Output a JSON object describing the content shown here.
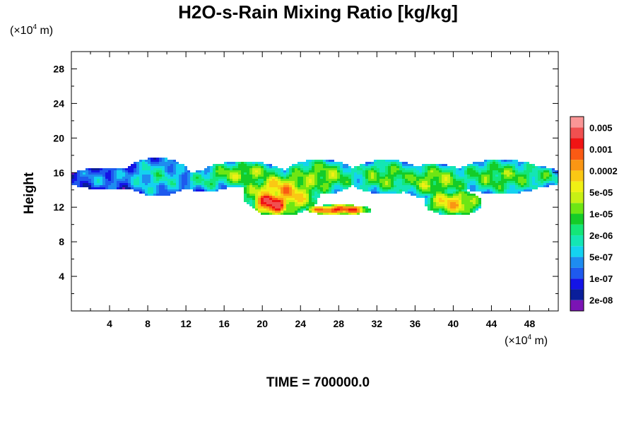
{
  "title": "H2O-s-Rain Mixing Ratio [kg/kg]",
  "y_unit": {
    "prefix": "(×10",
    "exp": "4",
    "suffix": " m)"
  },
  "x_unit": {
    "prefix": "(×10",
    "exp": "4",
    "suffix": " m)"
  },
  "ylabel": "Height",
  "footer": "TIME = 700000.0",
  "colors": {
    "levels": [
      "#7b14b4",
      "#0a1e9a",
      "#1414e6",
      "#1e5aee",
      "#1e8cf0",
      "#14d2f0",
      "#14e6b4",
      "#14e678",
      "#14cc28",
      "#6ee614",
      "#c8f014",
      "#f0f014",
      "#fac814",
      "#fa9614",
      "#fa5a14",
      "#f01414",
      "#f05050",
      "#fa9696"
    ]
  },
  "chart_data": {
    "type": "contour",
    "title": "H2O-s-Rain Mixing Ratio [kg/kg]",
    "xlabel": "",
    "ylabel": "Height",
    "x_ticks": [
      4,
      8,
      12,
      16,
      20,
      24,
      28,
      32,
      36,
      40,
      44,
      48
    ],
    "y_ticks": [
      4,
      8,
      12,
      16,
      20,
      24,
      28
    ],
    "xlim": [
      0,
      51
    ],
    "ylim": [
      0,
      30
    ],
    "colorbar_labels": [
      "0.005",
      "0.001",
      "0.0002",
      "5e-05",
      "1e-05",
      "2e-06",
      "5e-07",
      "1e-07",
      "2e-08"
    ],
    "blobs": [
      {
        "x": 4,
        "y": 15.3,
        "rx": 4.5,
        "ry": 1.3,
        "level": 0.25
      },
      {
        "x": 9,
        "y": 15.5,
        "rx": 3.5,
        "ry": 2.2,
        "level": 0.35
      },
      {
        "x": 14,
        "y": 15.0,
        "rx": 3.0,
        "ry": 1.2,
        "level": 0.38
      },
      {
        "x": 18,
        "y": 15.8,
        "rx": 4.5,
        "ry": 1.5,
        "level": 0.55
      },
      {
        "x": 22,
        "y": 13.5,
        "rx": 4.0,
        "ry": 2.5,
        "level": 0.72
      },
      {
        "x": 21,
        "y": 12.5,
        "rx": 2.0,
        "ry": 1.5,
        "level": 0.9
      },
      {
        "x": 28,
        "y": 11.7,
        "rx": 3.5,
        "ry": 0.6,
        "level": 0.85
      },
      {
        "x": 26,
        "y": 15.5,
        "rx": 4.0,
        "ry": 2.0,
        "level": 0.55
      },
      {
        "x": 33,
        "y": 15.5,
        "rx": 4.0,
        "ry": 2.0,
        "level": 0.5
      },
      {
        "x": 38,
        "y": 15.0,
        "rx": 4.0,
        "ry": 2.0,
        "level": 0.55
      },
      {
        "x": 40,
        "y": 12.5,
        "rx": 3.0,
        "ry": 1.5,
        "level": 0.68
      },
      {
        "x": 45,
        "y": 15.5,
        "rx": 5.0,
        "ry": 2.0,
        "level": 0.5
      },
      {
        "x": 49,
        "y": 15.5,
        "rx": 2.5,
        "ry": 1.2,
        "level": 0.45
      }
    ]
  }
}
